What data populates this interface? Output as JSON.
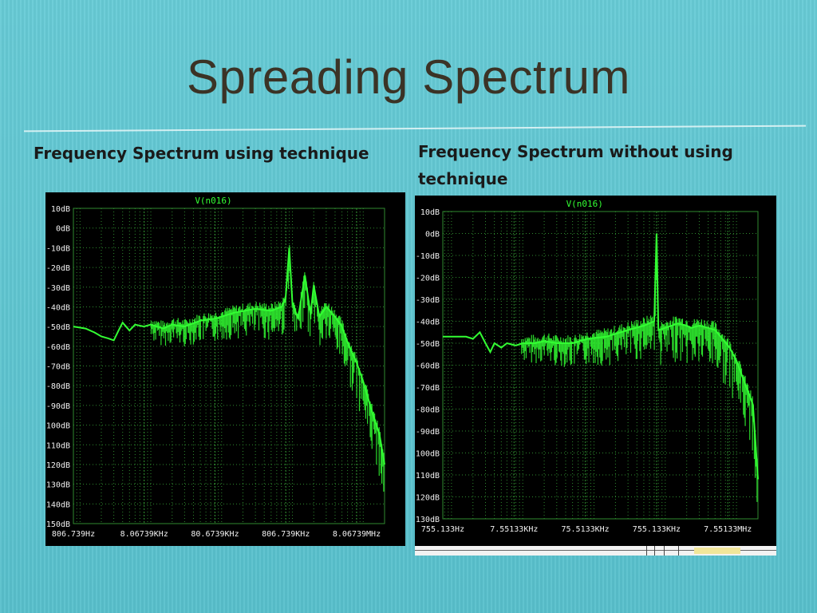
{
  "slide": {
    "title": "Spreading Spectrum",
    "caption_left": "Frequency Spectrum using technique",
    "caption_right": "Frequency Spectrum without using technique"
  },
  "colors": {
    "background": "#5ec6d0",
    "plot_bg": "#000000",
    "trace": "#33ff33",
    "grid": "#2f8a2f",
    "axis_text": "#f0f0f0",
    "trace_label": "#33ff33"
  },
  "chart_data": [
    {
      "type": "line",
      "title": "V(n016)",
      "xscale": "log",
      "xlim_hz": [
        806.739,
        20000000
      ],
      "x_tick_labels": [
        "806.739Hz",
        "8.06739KHz",
        "80.6739KHz",
        "806.739KHz",
        "8.06739MHz"
      ],
      "y_tick_labels": [
        "10dB",
        "0dB",
        "-10dB",
        "-20dB",
        "-30dB",
        "-40dB",
        "-50dB",
        "-60dB",
        "-70dB",
        "-80dB",
        "-90dB",
        "-100dB",
        "-110dB",
        "-120dB",
        "-130dB",
        "-140dB",
        "-150dB"
      ],
      "ylim": [
        -150,
        10
      ],
      "grid": true,
      "series": [
        {
          "x": [
            806.739,
            1200,
            1600,
            2000,
            2500,
            3000,
            3500,
            4000,
            5000,
            6000,
            8000,
            10000,
            15000,
            20000,
            30000,
            50000,
            80000,
            150000,
            300000,
            500000,
            700000,
            800000,
            900000,
            1000000,
            1200000,
            1500000,
            1800000,
            2000000,
            2400000,
            3000000,
            4000000,
            5000000,
            6000000,
            8000000,
            10000000,
            13000000,
            17000000,
            20000000
          ],
          "y": [
            -50,
            -51,
            -53,
            -55,
            -56,
            -57,
            -52,
            -48,
            -52,
            -49,
            -50,
            -49,
            -51,
            -49,
            -50,
            -47,
            -46,
            -43,
            -41,
            -42,
            -40,
            -36,
            -10,
            -38,
            -46,
            -24,
            -44,
            -29,
            -45,
            -40,
            -45,
            -50,
            -58,
            -68,
            -78,
            -92,
            -105,
            -120
          ]
        }
      ]
    },
    {
      "type": "line",
      "title": "V(n016)",
      "xscale": "log",
      "xlim_hz": [
        755.133,
        20000000
      ],
      "x_tick_labels": [
        "755.133Hz",
        "7.55133KHz",
        "75.5133KHz",
        "755.133KHz",
        "7.55133MHz"
      ],
      "y_tick_labels": [
        "10dB",
        "0dB",
        "-10dB",
        "-20dB",
        "-30dB",
        "-40dB",
        "-50dB",
        "-60dB",
        "-70dB",
        "-80dB",
        "-90dB",
        "-100dB",
        "-110dB",
        "-120dB",
        "-130dB"
      ],
      "ylim": [
        -130,
        10
      ],
      "grid": true,
      "series": [
        {
          "x": [
            755.133,
            1200,
            1600,
            2000,
            2500,
            3000,
            3500,
            4000,
            5000,
            6000,
            8000,
            10000,
            15000,
            20000,
            30000,
            50000,
            80000,
            150000,
            300000,
            500000,
            700000,
            755133,
            800000,
            1000000,
            1500000,
            2000000,
            2300000,
            3000000,
            4000000,
            5000000,
            6000000,
            8000000,
            10000000,
            13000000,
            17000000,
            20000000
          ],
          "y": [
            -47,
            -47,
            -47,
            -48,
            -45,
            -50,
            -54,
            -50,
            -52,
            -50,
            -51,
            -50,
            -50,
            -49,
            -50,
            -50,
            -48,
            -47,
            -44,
            -42,
            -40,
            0,
            -44,
            -43,
            -41,
            -42,
            -43,
            -42,
            -43,
            -44,
            -47,
            -52,
            -58,
            -68,
            -78,
            -112
          ]
        }
      ]
    }
  ]
}
